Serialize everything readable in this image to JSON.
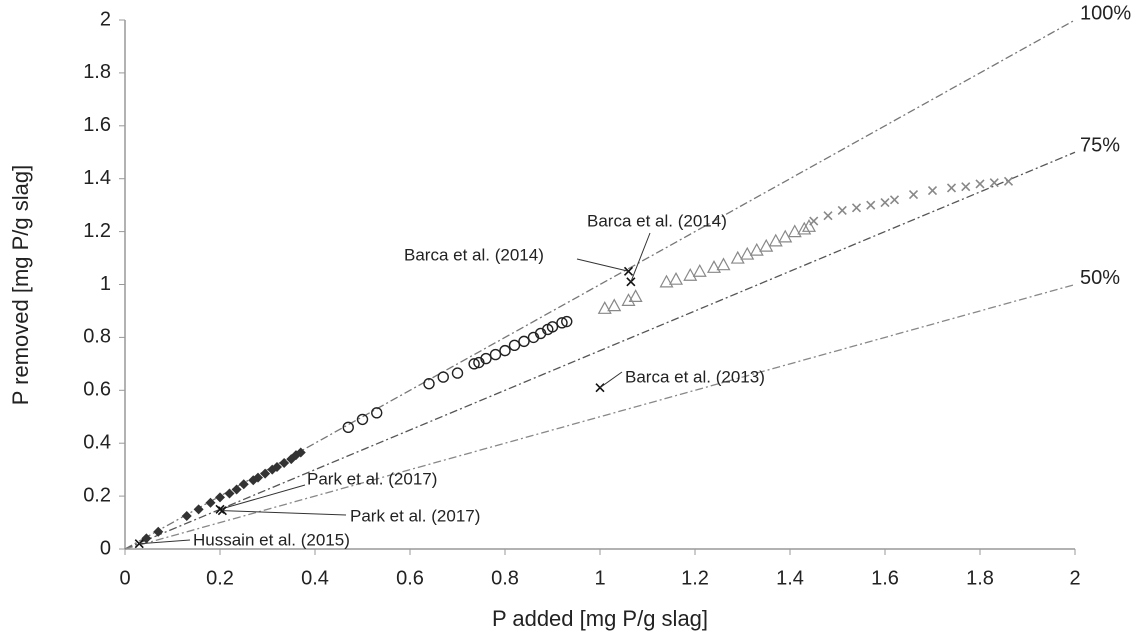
{
  "chart_data": {
    "type": "scatter",
    "x_label": "P added [mg P/g slag]",
    "y_label": "P removed [mg P/g slag]",
    "xlim": [
      0,
      2
    ],
    "ylim": [
      0,
      2
    ],
    "xticks": [
      0,
      0.2,
      0.4,
      0.6,
      0.8,
      1,
      1.2,
      1.4,
      1.6,
      1.8,
      2
    ],
    "yticks": [
      0,
      0.2,
      0.4,
      0.6,
      0.8,
      1,
      1.2,
      1.4,
      1.6,
      1.8,
      2
    ],
    "grid": false,
    "reference_lines": [
      {
        "label": "100%",
        "slope": 1,
        "color": "#777777"
      },
      {
        "label": "75%",
        "slope": 0.75,
        "color": "#555555"
      },
      {
        "label": "50%",
        "slope": 0.5,
        "color": "#888888"
      }
    ],
    "series": [
      {
        "marker": "diamond",
        "color": "#333333",
        "x": [
          0.045,
          0.07,
          0.13,
          0.155,
          0.18,
          0.2,
          0.22,
          0.235,
          0.25,
          0.27,
          0.28,
          0.295,
          0.31,
          0.32,
          0.335,
          0.35,
          0.36,
          0.37
        ],
        "values": [
          0.04,
          0.065,
          0.125,
          0.15,
          0.175,
          0.195,
          0.21,
          0.225,
          0.245,
          0.26,
          0.27,
          0.285,
          0.3,
          0.31,
          0.325,
          0.34,
          0.355,
          0.365
        ]
      },
      {
        "marker": "circle",
        "color": "#222222",
        "x": [
          0.47,
          0.5,
          0.53,
          0.64,
          0.67,
          0.7,
          0.735,
          0.745,
          0.76,
          0.78,
          0.8,
          0.82,
          0.84,
          0.86,
          0.875,
          0.89,
          0.9,
          0.92,
          0.93
        ],
        "values": [
          0.46,
          0.49,
          0.515,
          0.625,
          0.65,
          0.665,
          0.7,
          0.705,
          0.72,
          0.735,
          0.75,
          0.77,
          0.785,
          0.8,
          0.815,
          0.83,
          0.84,
          0.855,
          0.86
        ]
      },
      {
        "marker": "triangle",
        "color": "#888888",
        "x": [
          1.01,
          1.03,
          1.06,
          1.075,
          1.14,
          1.16,
          1.19,
          1.21,
          1.24,
          1.26,
          1.29,
          1.31,
          1.33,
          1.35,
          1.37,
          1.39,
          1.41,
          1.43,
          1.44
        ],
        "values": [
          0.91,
          0.92,
          0.94,
          0.955,
          1.01,
          1.02,
          1.035,
          1.05,
          1.065,
          1.075,
          1.1,
          1.115,
          1.13,
          1.145,
          1.165,
          1.18,
          1.2,
          1.21,
          1.22
        ]
      },
      {
        "marker": "cross",
        "color": "#888888",
        "x": [
          1.45,
          1.48,
          1.51,
          1.54,
          1.57,
          1.6,
          1.62,
          1.66,
          1.7,
          1.74,
          1.77,
          1.8,
          1.83,
          1.86
        ],
        "values": [
          1.24,
          1.26,
          1.28,
          1.29,
          1.3,
          1.31,
          1.32,
          1.34,
          1.355,
          1.365,
          1.37,
          1.38,
          1.385,
          1.39
        ]
      },
      {
        "marker": "cross",
        "color": "#111111",
        "x": [
          1.06,
          1.065,
          1,
          0.2,
          0.205,
          0.03
        ],
        "values": [
          1.05,
          1.01,
          0.61,
          0.15,
          0.145,
          0.02
        ],
        "point_labels": [
          "Barca et al. (2014)",
          "Barca et al. (2014)",
          "Barca et al. (2013)",
          "Park et al. (2017)",
          "Park et al. (2017)",
          "Hussain et al. (2015)"
        ]
      }
    ]
  }
}
